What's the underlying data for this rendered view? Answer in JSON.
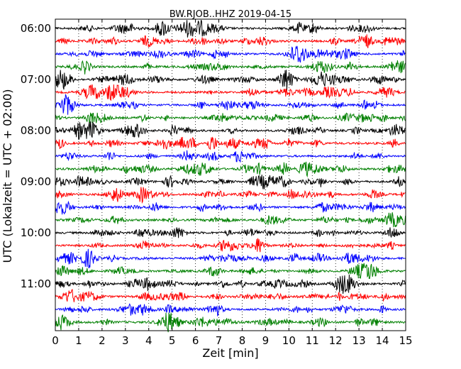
{
  "chart_data": {
    "type": "line",
    "title": "BW.RJOB..HHZ 2019-04-15",
    "xlabel": "Zeit  [min]",
    "ylabel": "UTC (Lokalzeit = UTC + 02:00)",
    "xlim": [
      0,
      15
    ],
    "x_ticks": [
      "0",
      "1",
      "2",
      "3",
      "4",
      "5",
      "6",
      "7",
      "8",
      "9",
      "10",
      "11",
      "12",
      "13",
      "14",
      "15"
    ],
    "y_ticks": [
      "06:00",
      "07:00",
      "08:00",
      "09:00",
      "10:00",
      "11:00"
    ],
    "grid": "vertical dotted at each minute",
    "trace_colors": [
      "#000000",
      "#ff0000",
      "#0000ff",
      "#008000"
    ],
    "trace_interval_minutes": 15,
    "series": [
      {
        "start": "06:00",
        "color": "#000000"
      },
      {
        "start": "06:15",
        "color": "#ff0000"
      },
      {
        "start": "06:30",
        "color": "#0000ff"
      },
      {
        "start": "06:45",
        "color": "#008000"
      },
      {
        "start": "07:00",
        "color": "#000000"
      },
      {
        "start": "07:15",
        "color": "#ff0000"
      },
      {
        "start": "07:30",
        "color": "#0000ff"
      },
      {
        "start": "07:45",
        "color": "#008000"
      },
      {
        "start": "08:00",
        "color": "#000000"
      },
      {
        "start": "08:15",
        "color": "#ff0000"
      },
      {
        "start": "08:30",
        "color": "#0000ff"
      },
      {
        "start": "08:45",
        "color": "#008000"
      },
      {
        "start": "09:00",
        "color": "#000000"
      },
      {
        "start": "09:15",
        "color": "#ff0000"
      },
      {
        "start": "09:30",
        "color": "#0000ff"
      },
      {
        "start": "09:45",
        "color": "#008000"
      },
      {
        "start": "10:00",
        "color": "#000000"
      },
      {
        "start": "10:15",
        "color": "#ff0000"
      },
      {
        "start": "10:30",
        "color": "#0000ff"
      },
      {
        "start": "10:45",
        "color": "#008000"
      },
      {
        "start": "11:00",
        "color": "#000000"
      },
      {
        "start": "11:15",
        "color": "#ff0000"
      },
      {
        "start": "11:30",
        "color": "#0000ff"
      },
      {
        "start": "11:45",
        "color": "#008000"
      }
    ]
  }
}
